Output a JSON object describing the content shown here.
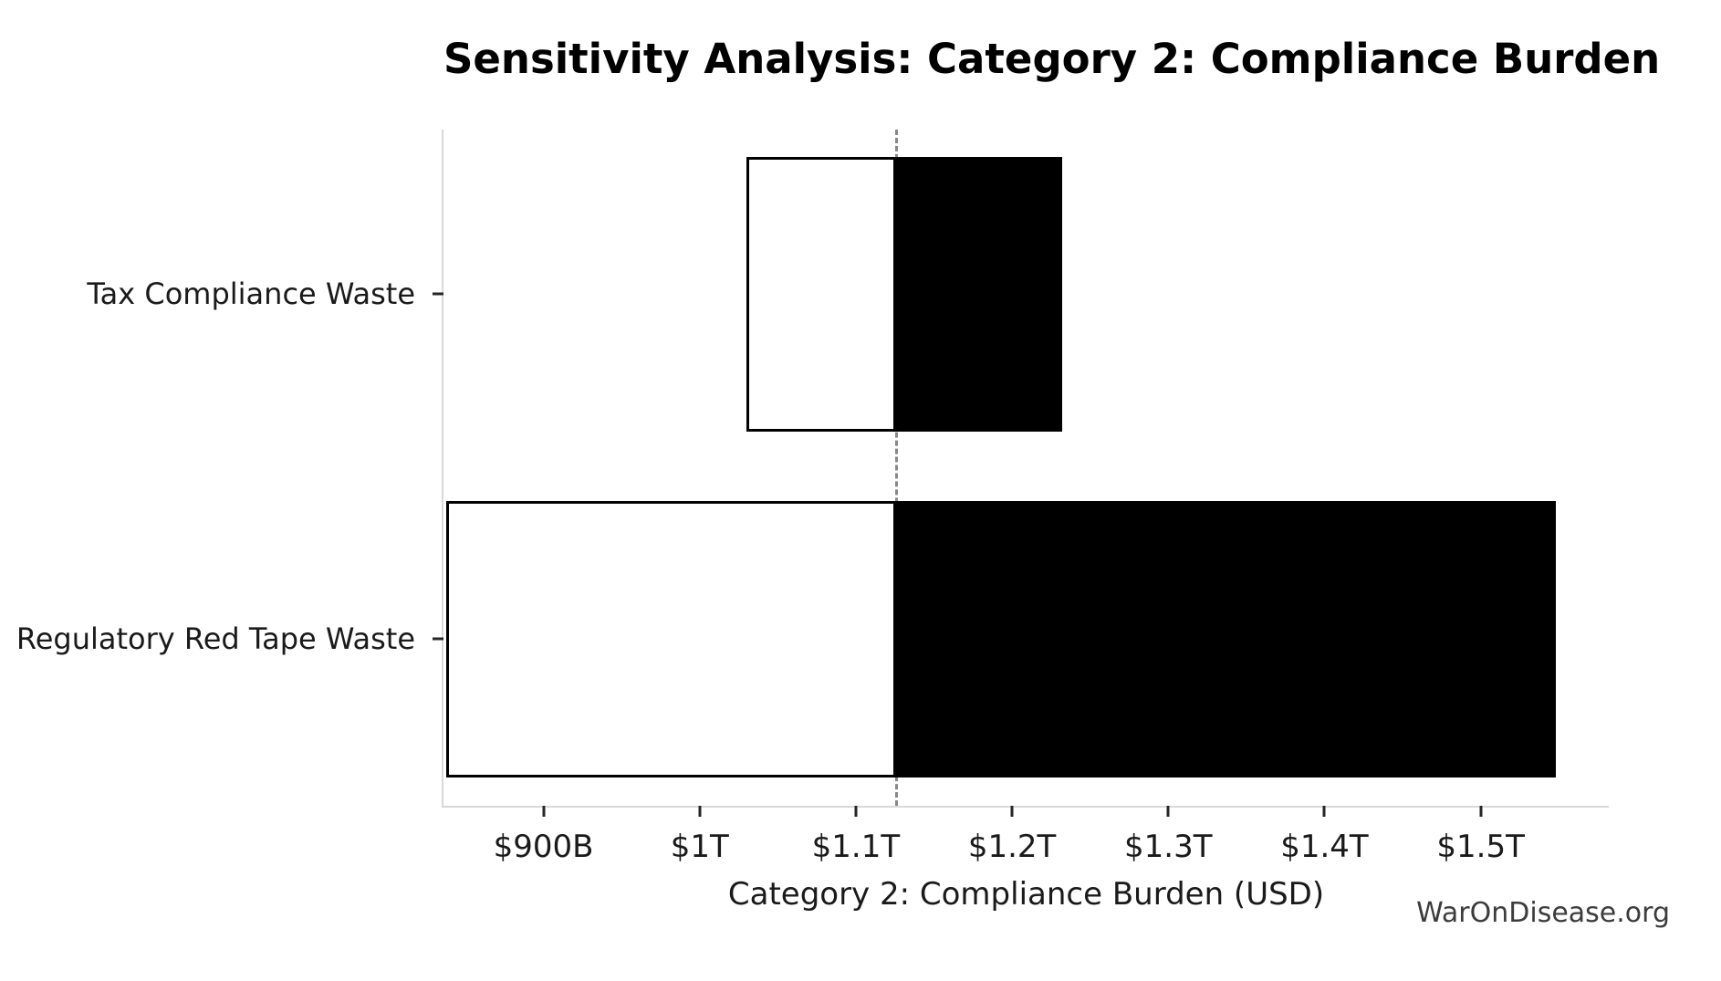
{
  "watermark": {
    "text": "WarOnDisease.org"
  },
  "chart_data": {
    "type": "bar",
    "subtype": "tornado-sensitivity",
    "orientation": "horizontal",
    "title": "Sensitivity Analysis: Category 2: Compliance Burden",
    "xlabel": "Category 2: Compliance Burden (USD)",
    "unit": "USD billions",
    "categories": [
      "Tax Compliance Waste",
      "Regulatory Red Tape Waste"
    ],
    "baseline": 1126,
    "series": [
      {
        "name": "Tax Compliance Waste",
        "low": 1030,
        "high": 1232
      },
      {
        "name": "Regulatory Red Tape Waste",
        "low": 838,
        "high": 1548
      }
    ],
    "x_ticks": [
      {
        "value": 900,
        "label": "$900B"
      },
      {
        "value": 1000,
        "label": "$1T"
      },
      {
        "value": 1100,
        "label": "$1.1T"
      },
      {
        "value": 1200,
        "label": "$1.2T"
      },
      {
        "value": 1300,
        "label": "$1.3T"
      },
      {
        "value": 1400,
        "label": "$1.4T"
      },
      {
        "value": 1500,
        "label": "$1.5T"
      }
    ],
    "xlim": [
      836,
      1582
    ],
    "grid": false,
    "legend": null,
    "colors": {
      "low_fill": "#ffffff",
      "high_fill": "#000000",
      "bar_edge": "#000000",
      "baseline_line": "#888888",
      "spine": "#d9d9d9",
      "tick": "#262626",
      "text": "#1a1a1a",
      "watermark": "#3c3c3c"
    }
  }
}
